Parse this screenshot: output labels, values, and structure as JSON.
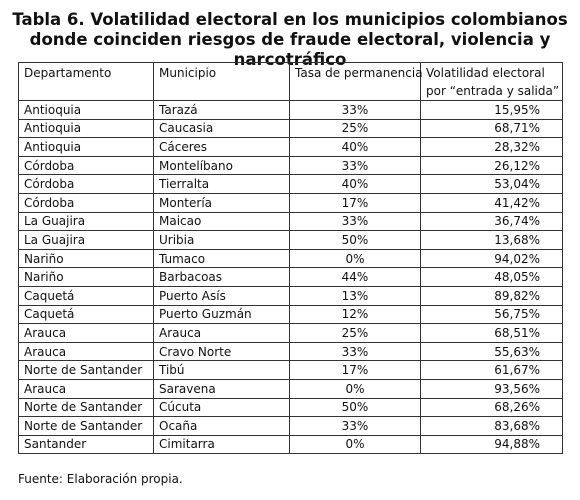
{
  "title": [
    "Tabla 6. Volatilidad electoral en los municipios colombianos",
    "donde coinciden riesgos de fraude electoral, violencia y narcotráfico"
  ],
  "table": {
    "header": [
      [
        "Departamento"
      ],
      [
        "Municipio"
      ],
      [
        "Tasa de permanencia"
      ],
      [
        "Volatilidad electoral",
        "por “entrada y salida”"
      ]
    ],
    "rows": [
      [
        "Antioquia",
        "Tarazá",
        "33%",
        "15,95%"
      ],
      [
        "Antioquia",
        "Caucasia",
        "25%",
        "68,71%"
      ],
      [
        "Antioquia",
        "Cáceres",
        "40%",
        "28,32%"
      ],
      [
        "Córdoba",
        "Montelíbano",
        "33%",
        "26,12%"
      ],
      [
        "Córdoba",
        "Tierralta",
        "40%",
        "53,04%"
      ],
      [
        "Córdoba",
        "Montería",
        "17%",
        "41,42%"
      ],
      [
        "La Guajira",
        "Maicao",
        "33%",
        "36,74%"
      ],
      [
        "La Guajira",
        "Uribia",
        "50%",
        "13,68%"
      ],
      [
        "Nariño",
        "Tumaco",
        "0%",
        "94,02%"
      ],
      [
        "Nariño",
        "Barbacoas",
        "44%",
        "48,05%"
      ],
      [
        "Caquetá",
        "Puerto Asís",
        "13%",
        "89,82%"
      ],
      [
        "Caquetá",
        "Puerto Guzmán",
        "12%",
        "56,75%"
      ],
      [
        "Arauca",
        "Arauca",
        "25%",
        "68,51%"
      ],
      [
        "Arauca",
        "Cravo Norte",
        "33%",
        "55,63%"
      ],
      [
        "Norte de Santander",
        "Tibú",
        "17%",
        "61,67%"
      ],
      [
        "Arauca",
        "Saravena",
        "0%",
        "93,56%"
      ],
      [
        "Norte de Santander",
        "Cúcuta",
        "50%",
        "68,26%"
      ],
      [
        "Norte de Santander",
        "Ocaña",
        "33%",
        "83,68%"
      ],
      [
        "Santander",
        "Cimitarra",
        "0%",
        "94,88%"
      ]
    ]
  },
  "footnote": "Fuente: Elaboración propia."
}
